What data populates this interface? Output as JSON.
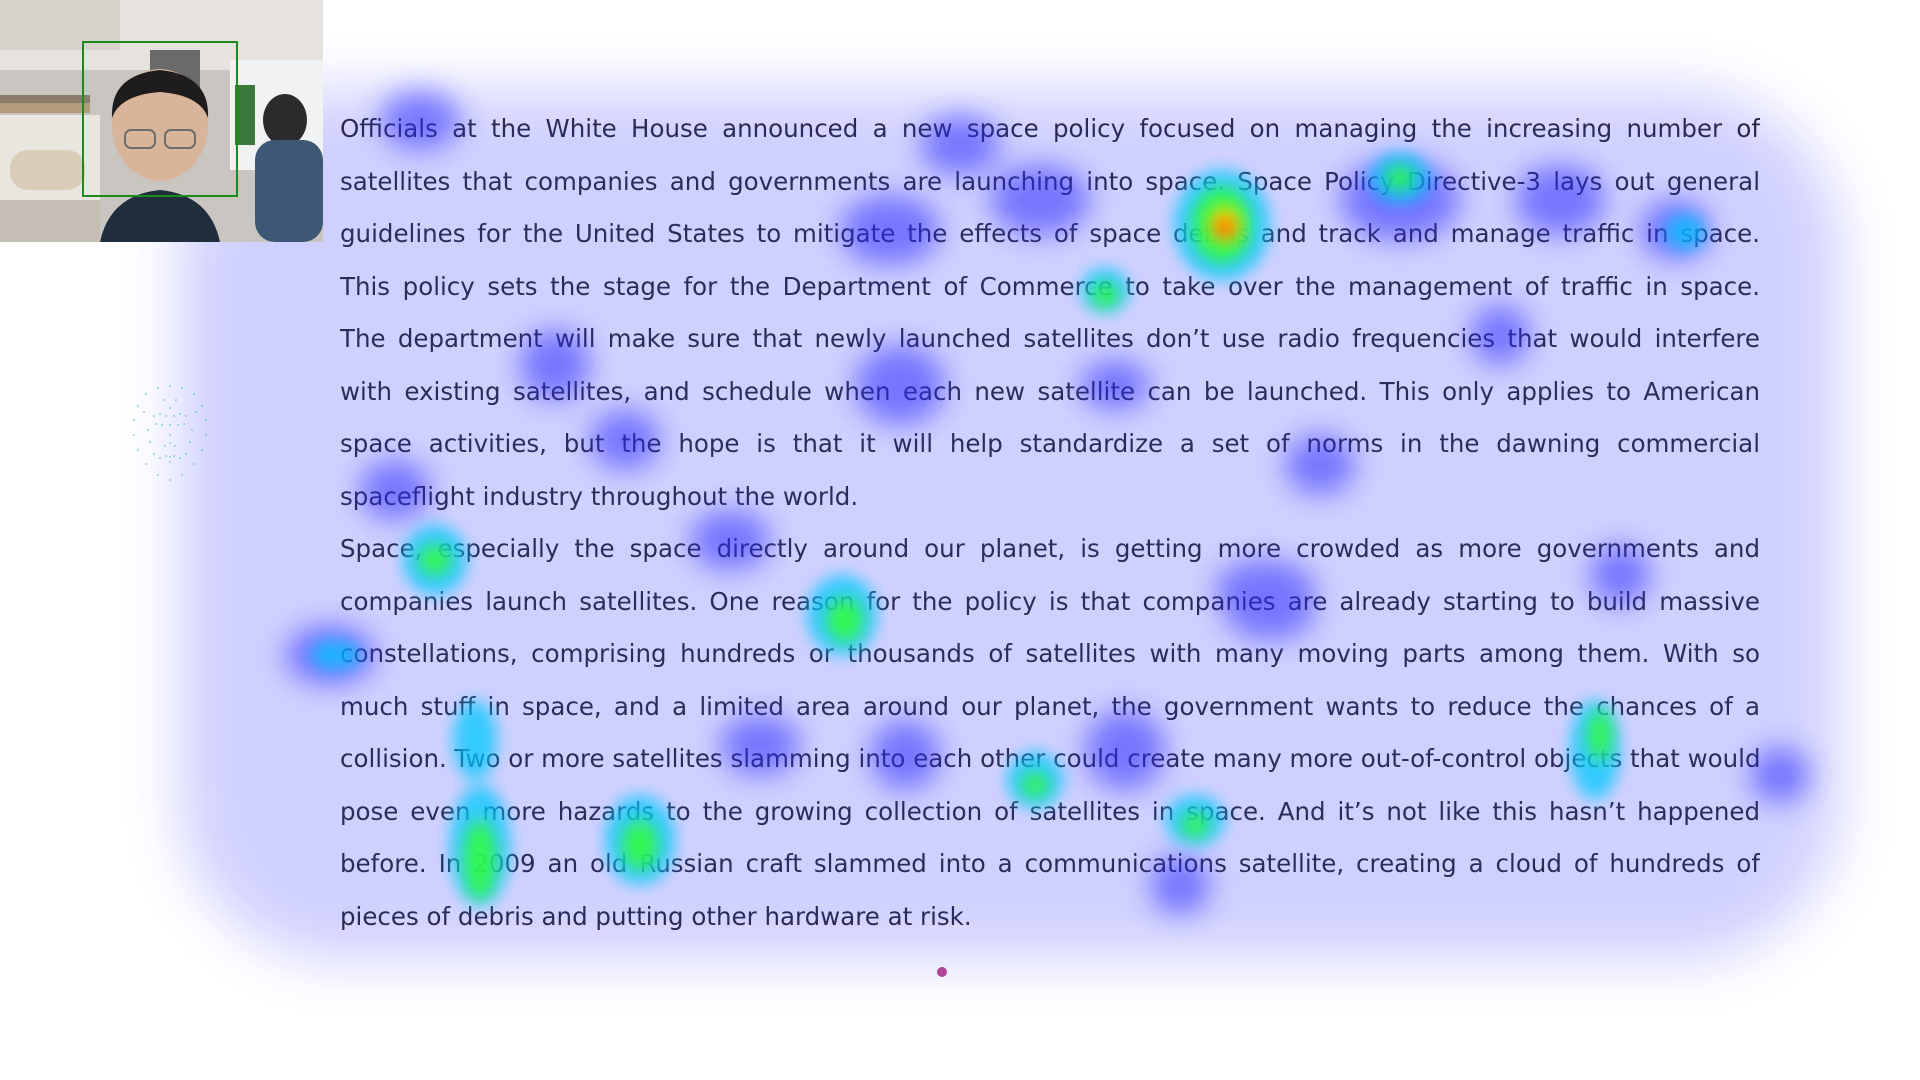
{
  "passage": {
    "lines": [
      "Officials at the White House announced a new space policy focused on managing the increasing number of",
      "satellites that companies and governments are launching into space. Space Policy Directive-3 lays out general",
      "guidelines for the United States to mitigate the effects of space debris and track and manage traffic in space.",
      "This policy sets the stage for the Department of Commerce to take over the management of traffic in space.",
      "The department will make sure that newly launched satellites don’t use radio frequencies that would interfere",
      "with existing satellites, and schedule when each new satellite can be launched. This only applies to American",
      "space activities, but the hope is that it will help standardize a set of norms in the dawning commercial",
      "spaceflight industry throughout the world.",
      "Space, especially the space directly around our planet, is getting more crowded as more governments and",
      "companies launch satellites. One reason for the policy is that companies are already starting to build massive",
      "constellations, comprising hundreds or thousands of satellites with many moving parts among them. With so",
      "much stuff in space, and a limited area around our planet, the government wants to reduce the chances of a",
      "collision. Two or more satellites slamming into each other could create many more out-of-control objects that would",
      "pose even more hazards to the growing collection of satellites in space. And it’s not like this hasn’t happened",
      "before. In 2009 an old Russian craft slammed into a communications satellite, creating a cloud of hundreds of",
      "pieces of debris and putting other hardware at risk."
    ]
  },
  "heatmap": {
    "colors": {
      "low": "#2a2aff",
      "mid": "#00c8ff",
      "high": "#33ff33",
      "peak": "#ff2a00"
    },
    "hotspots": [
      {
        "id": "h1",
        "intensity": 1.0
      },
      {
        "id": "h2",
        "intensity": 0.7
      }
    ]
  },
  "webcam": {
    "label": "webcam-feed"
  },
  "colors": {
    "text": "#1a1a1a",
    "face_box": "#1c8a1c",
    "gaze_dot": "#b2459a",
    "mesh": "#40c0c0"
  }
}
